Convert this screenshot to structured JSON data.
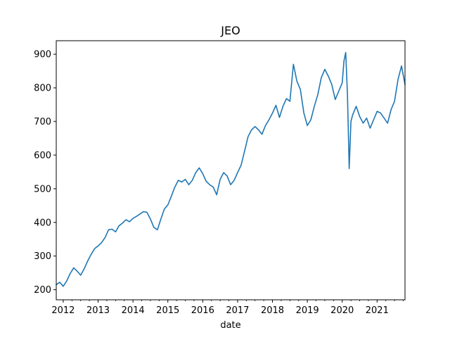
{
  "chart_data": {
    "type": "line",
    "title": "JEO",
    "xlabel": "date",
    "ylabel": "",
    "xlim": [
      2011.8,
      2021.8
    ],
    "ylim": [
      170,
      940
    ],
    "x_ticks": [
      2012,
      2013,
      2014,
      2015,
      2016,
      2017,
      2018,
      2019,
      2020,
      2021
    ],
    "y_ticks": [
      200,
      300,
      400,
      500,
      600,
      700,
      800,
      900
    ],
    "grid": false,
    "series": [
      {
        "name": "JEO",
        "color": "#1f77b4",
        "x": [
          2011.8,
          2011.9,
          2012.0,
          2012.1,
          2012.2,
          2012.3,
          2012.4,
          2012.5,
          2012.6,
          2012.7,
          2012.8,
          2012.9,
          2013.0,
          2013.1,
          2013.2,
          2013.3,
          2013.4,
          2013.5,
          2013.6,
          2013.7,
          2013.8,
          2013.9,
          2014.0,
          2014.1,
          2014.2,
          2014.3,
          2014.4,
          2014.5,
          2014.6,
          2014.7,
          2014.8,
          2014.9,
          2015.0,
          2015.1,
          2015.2,
          2015.3,
          2015.4,
          2015.5,
          2015.6,
          2015.7,
          2015.8,
          2015.9,
          2016.0,
          2016.1,
          2016.2,
          2016.3,
          2016.4,
          2016.5,
          2016.6,
          2016.7,
          2016.8,
          2016.9,
          2017.0,
          2017.1,
          2017.2,
          2017.3,
          2017.4,
          2017.5,
          2017.6,
          2017.7,
          2017.8,
          2017.9,
          2018.0,
          2018.1,
          2018.2,
          2018.3,
          2018.4,
          2018.5,
          2018.6,
          2018.7,
          2018.8,
          2018.9,
          2019.0,
          2019.1,
          2019.2,
          2019.3,
          2019.4,
          2019.5,
          2019.6,
          2019.7,
          2019.8,
          2019.9,
          2020.0,
          2020.05,
          2020.1,
          2020.15,
          2020.2,
          2020.25,
          2020.3,
          2020.4,
          2020.5,
          2020.6,
          2020.7,
          2020.8,
          2020.9,
          2021.0,
          2021.1,
          2021.2,
          2021.3,
          2021.4,
          2021.5,
          2021.6,
          2021.7,
          2021.8
        ],
        "values": [
          215,
          222,
          210,
          226,
          248,
          265,
          255,
          243,
          262,
          285,
          305,
          322,
          330,
          340,
          355,
          378,
          380,
          372,
          390,
          398,
          408,
          402,
          412,
          418,
          425,
          432,
          430,
          410,
          385,
          378,
          410,
          440,
          452,
          478,
          505,
          525,
          520,
          528,
          512,
          525,
          548,
          562,
          545,
          522,
          512,
          505,
          482,
          528,
          548,
          538,
          512,
          525,
          548,
          570,
          612,
          655,
          675,
          685,
          675,
          662,
          688,
          705,
          725,
          748,
          712,
          745,
          768,
          760,
          870,
          820,
          795,
          725,
          688,
          705,
          745,
          780,
          830,
          855,
          835,
          810,
          765,
          790,
          815,
          880,
          905,
          780,
          560,
          700,
          720,
          745,
          715,
          695,
          710,
          680,
          705,
          730,
          725,
          710,
          695,
          735,
          760,
          825,
          865,
          810
        ]
      }
    ]
  }
}
